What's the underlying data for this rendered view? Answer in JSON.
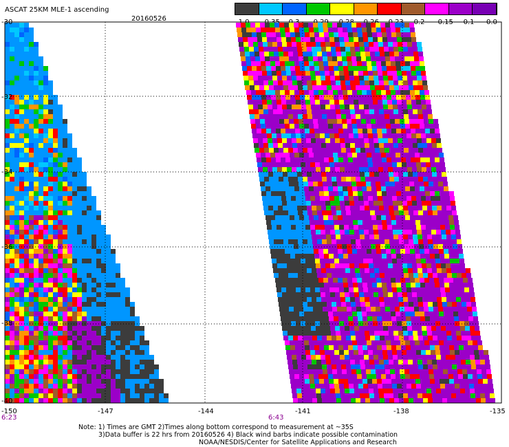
{
  "header": {
    "title": "ASCAT 25KM MLE-1 ascending",
    "date": "20160526"
  },
  "colorbar": {
    "tick_labels": [
      "-1.0",
      "-0.35",
      "-0.3",
      "-0.29",
      "-0.28",
      "-0.26",
      "-0.23",
      "-0.2",
      "-0.15",
      "-0.1",
      "0.0"
    ],
    "colors": [
      "#3c3c3c",
      "#00c8ff",
      "#0064ff",
      "#00c800",
      "#ffff00",
      "#ff9600",
      "#ff0000",
      "#a05a2c",
      "#ff00ff",
      "#9b00c8",
      "#7800b4"
    ]
  },
  "map": {
    "lat_labels": [
      "-30",
      "-32",
      "-34",
      "-36",
      "-38",
      "-40"
    ],
    "lon_labels": [
      "-150",
      "-147",
      "-144",
      "-141",
      "-138",
      "-135"
    ],
    "times": [
      "6:23",
      "6:43"
    ],
    "legend_palette": {
      "dark_gray": "#3c3c3c",
      "light_blue": "#0096ff",
      "magenta": "#ff00ff",
      "purple": "#9b00c8",
      "red": "#ff0000",
      "orange": "#ff9600",
      "yellow": "#ffff00",
      "green": "#00c800",
      "brown": "#a05a2c",
      "blue": "#0064ff",
      "cyan": "#00c8ff"
    }
  },
  "notes": {
    "line1": "Note: 1) Times are GMT 2)Times along bottom correspond to measurement at ~35S",
    "line2": "3)Data buffer is 22 hrs from 20160526 4) Black wind barbs indicate possible contamination",
    "line3": "NOAA/NESDIS/Center for Satellite Applications and Research"
  }
}
